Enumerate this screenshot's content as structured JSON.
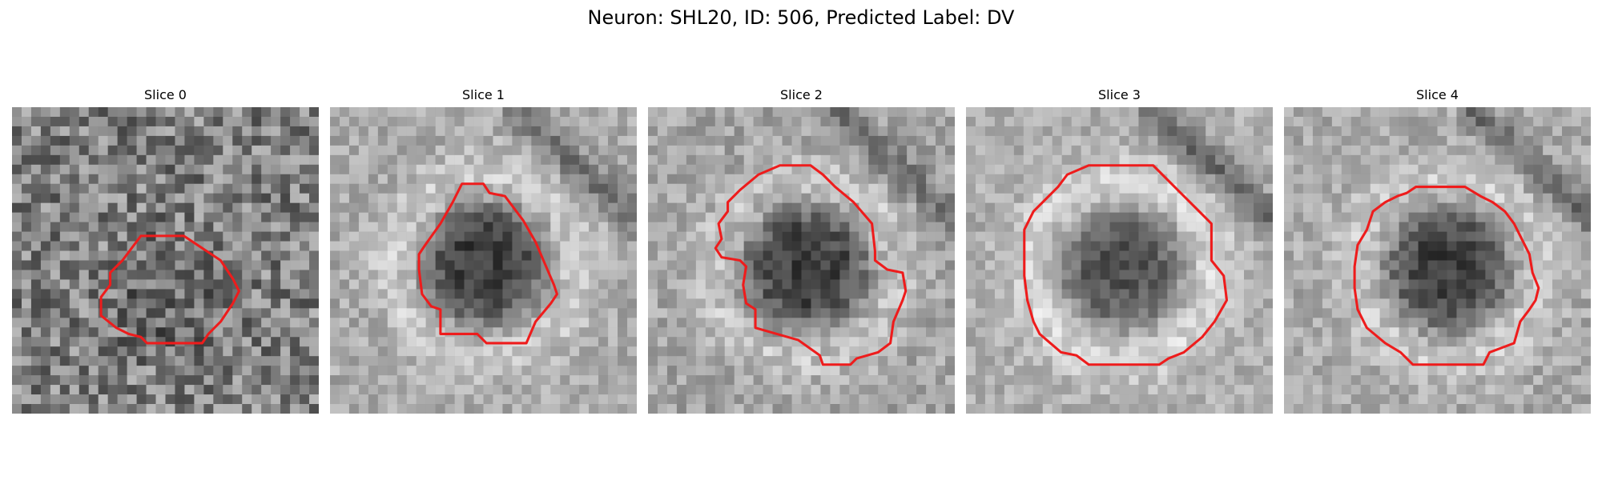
{
  "figure": {
    "title": "Neuron: SHL20, ID: 506, Predicted Label: DV"
  },
  "colors": {
    "contour": "#ee1c1c",
    "background": "#ffffff"
  },
  "panels": [
    {
      "title": "Slice 0",
      "image": {
        "base_gray": 128,
        "contrast": 70,
        "noise": 120,
        "ring_strength": 0,
        "blob_dark": 25
      },
      "contour": [
        [
          0.42,
          0.42
        ],
        [
          0.56,
          0.42
        ],
        [
          0.62,
          0.46
        ],
        [
          0.68,
          0.5
        ],
        [
          0.72,
          0.56
        ],
        [
          0.74,
          0.6
        ],
        [
          0.72,
          0.64
        ],
        [
          0.68,
          0.7
        ],
        [
          0.64,
          0.74
        ],
        [
          0.62,
          0.77
        ],
        [
          0.44,
          0.77
        ],
        [
          0.42,
          0.75
        ],
        [
          0.38,
          0.74
        ],
        [
          0.34,
          0.72
        ],
        [
          0.29,
          0.68
        ],
        [
          0.29,
          0.62
        ],
        [
          0.32,
          0.58
        ],
        [
          0.32,
          0.54
        ],
        [
          0.36,
          0.5
        ]
      ]
    },
    {
      "title": "Slice 1",
      "image": {
        "base_gray": 170,
        "contrast": 90,
        "noise": 60,
        "ring_strength": 55,
        "blob_dark": 110
      },
      "contour": [
        [
          0.43,
          0.25
        ],
        [
          0.5,
          0.25
        ],
        [
          0.52,
          0.28
        ],
        [
          0.57,
          0.29
        ],
        [
          0.6,
          0.33
        ],
        [
          0.63,
          0.37
        ],
        [
          0.67,
          0.44
        ],
        [
          0.7,
          0.51
        ],
        [
          0.73,
          0.58
        ],
        [
          0.74,
          0.61
        ],
        [
          0.72,
          0.64
        ],
        [
          0.67,
          0.7
        ],
        [
          0.64,
          0.77
        ],
        [
          0.51,
          0.77
        ],
        [
          0.48,
          0.74
        ],
        [
          0.36,
          0.74
        ],
        [
          0.36,
          0.66
        ],
        [
          0.33,
          0.65
        ],
        [
          0.3,
          0.61
        ],
        [
          0.29,
          0.53
        ],
        [
          0.29,
          0.48
        ],
        [
          0.31,
          0.45
        ],
        [
          0.36,
          0.38
        ],
        [
          0.4,
          0.31
        ]
      ]
    },
    {
      "title": "Slice 2",
      "image": {
        "base_gray": 165,
        "contrast": 90,
        "noise": 65,
        "ring_strength": 50,
        "blob_dark": 105
      },
      "contour": [
        [
          0.43,
          0.19
        ],
        [
          0.53,
          0.19
        ],
        [
          0.57,
          0.22
        ],
        [
          0.61,
          0.26
        ],
        [
          0.67,
          0.31
        ],
        [
          0.73,
          0.38
        ],
        [
          0.74,
          0.47
        ],
        [
          0.74,
          0.5
        ],
        [
          0.78,
          0.53
        ],
        [
          0.83,
          0.54
        ],
        [
          0.84,
          0.6
        ],
        [
          0.83,
          0.63
        ],
        [
          0.8,
          0.7
        ],
        [
          0.79,
          0.77
        ],
        [
          0.75,
          0.8
        ],
        [
          0.68,
          0.82
        ],
        [
          0.66,
          0.84
        ],
        [
          0.57,
          0.84
        ],
        [
          0.56,
          0.81
        ],
        [
          0.49,
          0.76
        ],
        [
          0.42,
          0.74
        ],
        [
          0.35,
          0.72
        ],
        [
          0.35,
          0.66
        ],
        [
          0.32,
          0.64
        ],
        [
          0.31,
          0.58
        ],
        [
          0.32,
          0.52
        ],
        [
          0.3,
          0.5
        ],
        [
          0.24,
          0.49
        ],
        [
          0.22,
          0.46
        ],
        [
          0.24,
          0.43
        ],
        [
          0.23,
          0.38
        ],
        [
          0.26,
          0.34
        ],
        [
          0.26,
          0.31
        ],
        [
          0.3,
          0.27
        ],
        [
          0.36,
          0.22
        ]
      ]
    },
    {
      "title": "Slice 3",
      "image": {
        "base_gray": 175,
        "contrast": 95,
        "noise": 55,
        "ring_strength": 65,
        "blob_dark": 90
      },
      "contour": [
        [
          0.4,
          0.19
        ],
        [
          0.61,
          0.19
        ],
        [
          0.64,
          0.22
        ],
        [
          0.69,
          0.27
        ],
        [
          0.75,
          0.33
        ],
        [
          0.8,
          0.38
        ],
        [
          0.8,
          0.5
        ],
        [
          0.84,
          0.55
        ],
        [
          0.85,
          0.63
        ],
        [
          0.81,
          0.7
        ],
        [
          0.77,
          0.75
        ],
        [
          0.71,
          0.8
        ],
        [
          0.66,
          0.82
        ],
        [
          0.63,
          0.84
        ],
        [
          0.4,
          0.84
        ],
        [
          0.36,
          0.81
        ],
        [
          0.31,
          0.8
        ],
        [
          0.24,
          0.74
        ],
        [
          0.22,
          0.7
        ],
        [
          0.2,
          0.63
        ],
        [
          0.19,
          0.55
        ],
        [
          0.19,
          0.4
        ],
        [
          0.22,
          0.34
        ],
        [
          0.27,
          0.29
        ],
        [
          0.3,
          0.26
        ],
        [
          0.33,
          0.22
        ]
      ]
    },
    {
      "title": "Slice 4",
      "image": {
        "base_gray": 170,
        "contrast": 90,
        "noise": 60,
        "ring_strength": 55,
        "blob_dark": 110
      },
      "contour": [
        [
          0.43,
          0.26
        ],
        [
          0.59,
          0.26
        ],
        [
          0.64,
          0.29
        ],
        [
          0.68,
          0.31
        ],
        [
          0.72,
          0.34
        ],
        [
          0.75,
          0.38
        ],
        [
          0.78,
          0.44
        ],
        [
          0.8,
          0.48
        ],
        [
          0.81,
          0.54
        ],
        [
          0.83,
          0.59
        ],
        [
          0.82,
          0.63
        ],
        [
          0.8,
          0.66
        ],
        [
          0.77,
          0.7
        ],
        [
          0.75,
          0.77
        ],
        [
          0.67,
          0.8
        ],
        [
          0.65,
          0.84
        ],
        [
          0.42,
          0.84
        ],
        [
          0.38,
          0.8
        ],
        [
          0.33,
          0.77
        ],
        [
          0.27,
          0.72
        ],
        [
          0.24,
          0.66
        ],
        [
          0.23,
          0.59
        ],
        [
          0.23,
          0.52
        ],
        [
          0.24,
          0.45
        ],
        [
          0.27,
          0.4
        ],
        [
          0.29,
          0.34
        ],
        [
          0.33,
          0.31
        ],
        [
          0.37,
          0.29
        ],
        [
          0.4,
          0.28
        ]
      ]
    }
  ]
}
